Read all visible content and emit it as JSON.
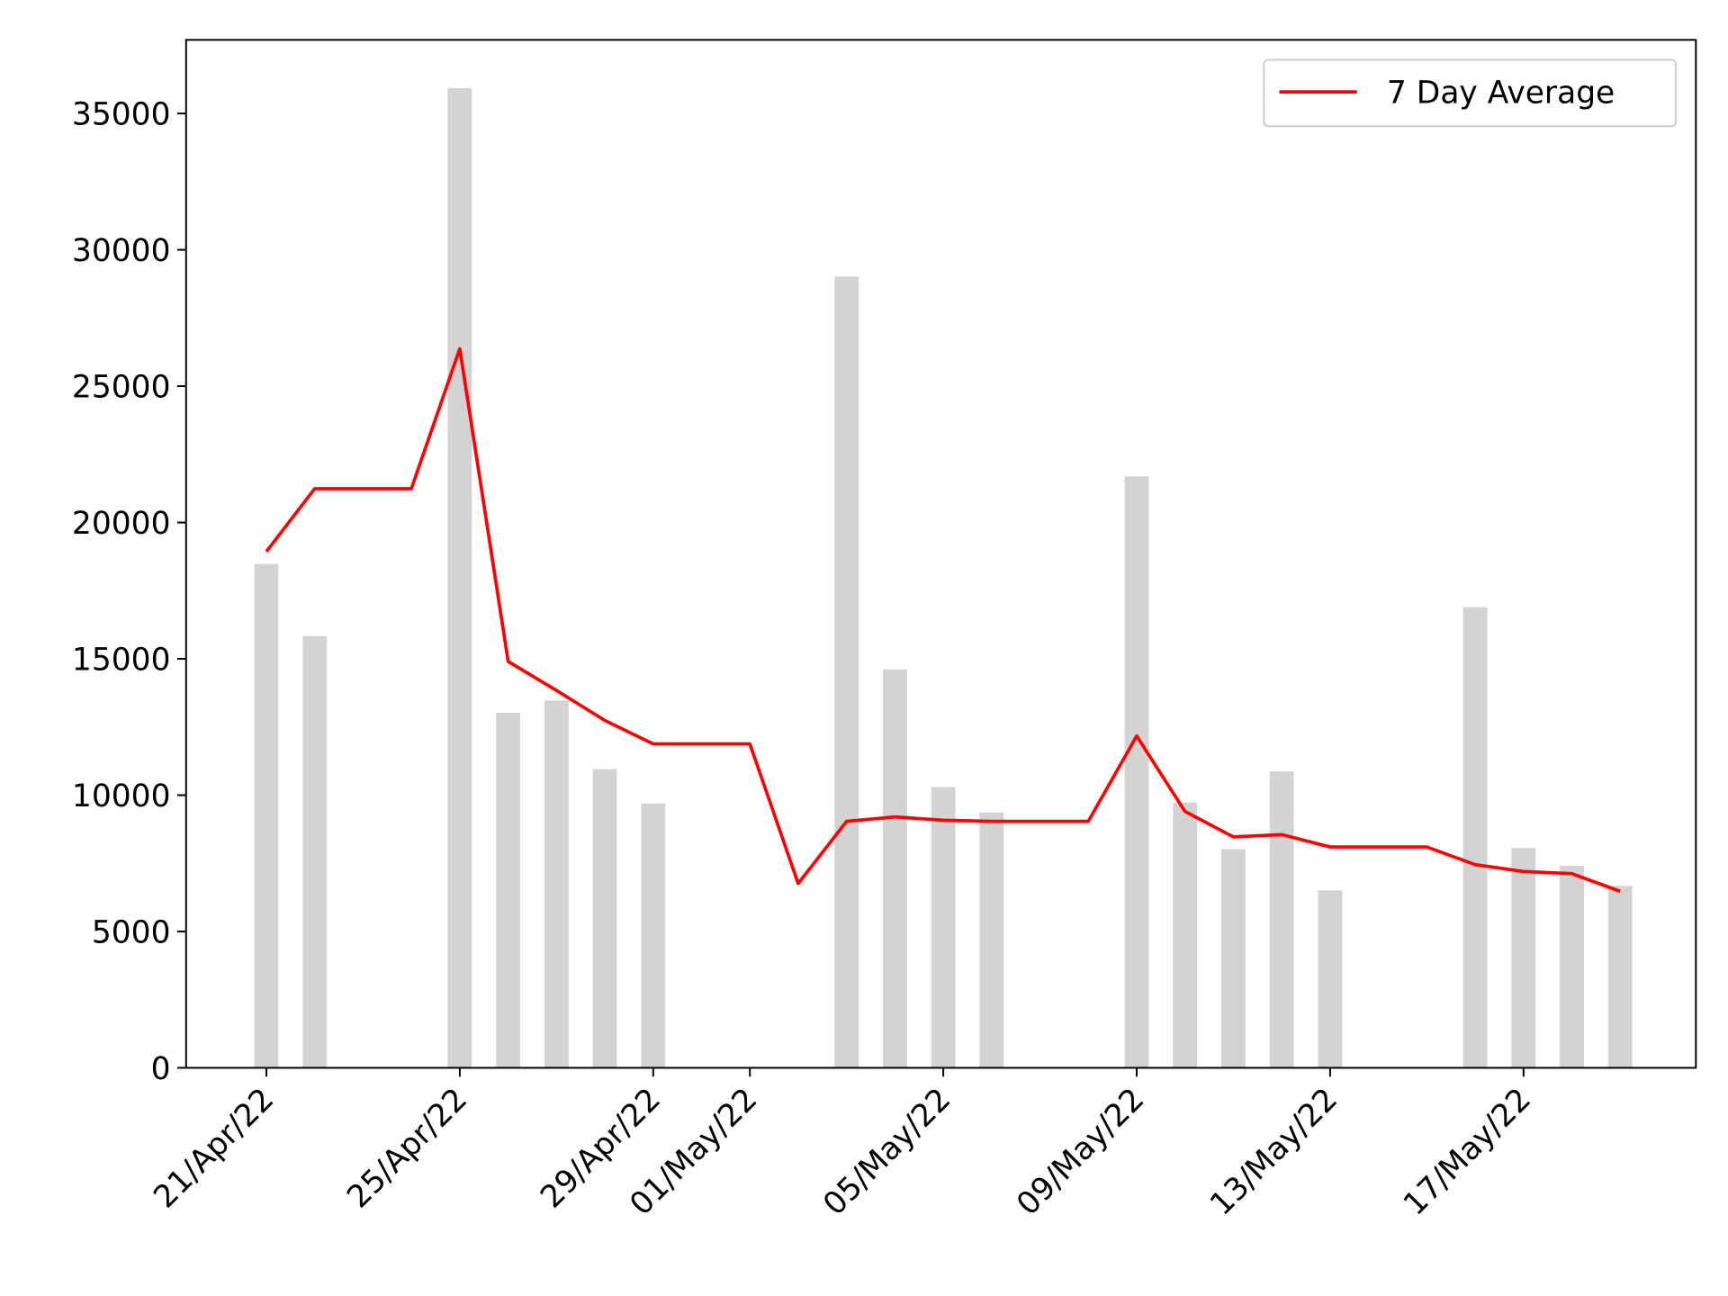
{
  "chart_data": {
    "type": "bar+line",
    "title": "",
    "xlabel": "",
    "ylabel": "",
    "ylim": [
      0,
      37700
    ],
    "yticks": [
      0,
      5000,
      10000,
      15000,
      20000,
      25000,
      30000,
      35000
    ],
    "xticks": [
      "2022-04-21",
      "2022-04-25",
      "2022-04-29",
      "2022-05-01",
      "2022-05-05",
      "2022-05-09",
      "2022-05-13",
      "2022-05-17"
    ],
    "xtick_labels": [
      "21/Apr/22",
      "25/Apr/22",
      "29/Apr/22",
      "01/May/22",
      "05/May/22",
      "09/May/22",
      "13/May/22",
      "17/May/22"
    ],
    "grid": false,
    "legend_position": "top-right",
    "bars": {
      "color": "#d3d3d3",
      "points": [
        {
          "date": "2022-04-21",
          "value": 18480
        },
        {
          "date": "2022-04-22",
          "value": 15830
        },
        {
          "date": "2022-04-25",
          "value": 35930
        },
        {
          "date": "2022-04-26",
          "value": 13020
        },
        {
          "date": "2022-04-27",
          "value": 13470
        },
        {
          "date": "2022-04-28",
          "value": 10950
        },
        {
          "date": "2022-04-29",
          "value": 9690
        },
        {
          "date": "2022-05-03",
          "value": 29020
        },
        {
          "date": "2022-05-04",
          "value": 14610
        },
        {
          "date": "2022-05-05",
          "value": 10300
        },
        {
          "date": "2022-05-06",
          "value": 9360
        },
        {
          "date": "2022-05-09",
          "value": 21690
        },
        {
          "date": "2022-05-10",
          "value": 9730
        },
        {
          "date": "2022-05-11",
          "value": 8020
        },
        {
          "date": "2022-05-12",
          "value": 10870
        },
        {
          "date": "2022-05-13",
          "value": 6510
        },
        {
          "date": "2022-05-16",
          "value": 16890
        },
        {
          "date": "2022-05-17",
          "value": 8060
        },
        {
          "date": "2022-05-18",
          "value": 7410
        },
        {
          "date": "2022-05-19",
          "value": 6670
        }
      ]
    },
    "series": [
      {
        "name": "7 Day Average",
        "color": "#ff0000",
        "points": [
          {
            "date": "2022-04-21",
            "value": 18930
          },
          {
            "date": "2022-04-22",
            "value": 21240
          },
          {
            "date": "2022-04-23",
            "value": 21240
          },
          {
            "date": "2022-04-24",
            "value": 21240
          },
          {
            "date": "2022-04-25",
            "value": 26370
          },
          {
            "date": "2022-04-26",
            "value": 14900
          },
          {
            "date": "2022-04-27",
            "value": 13840
          },
          {
            "date": "2022-04-28",
            "value": 12740
          },
          {
            "date": "2022-04-29",
            "value": 11880
          },
          {
            "date": "2022-04-30",
            "value": 11880
          },
          {
            "date": "2022-05-01",
            "value": 11880
          },
          {
            "date": "2022-05-02",
            "value": 6760
          },
          {
            "date": "2022-05-03",
            "value": 9040
          },
          {
            "date": "2022-05-04",
            "value": 9200
          },
          {
            "date": "2022-05-05",
            "value": 9080
          },
          {
            "date": "2022-05-06",
            "value": 9040
          },
          {
            "date": "2022-05-07",
            "value": 9040
          },
          {
            "date": "2022-05-08",
            "value": 9040
          },
          {
            "date": "2022-05-09",
            "value": 12170
          },
          {
            "date": "2022-05-10",
            "value": 9400
          },
          {
            "date": "2022-05-11",
            "value": 8470
          },
          {
            "date": "2022-05-12",
            "value": 8550
          },
          {
            "date": "2022-05-13",
            "value": 8100
          },
          {
            "date": "2022-05-14",
            "value": 8100
          },
          {
            "date": "2022-05-15",
            "value": 8100
          },
          {
            "date": "2022-05-16",
            "value": 7450
          },
          {
            "date": "2022-05-17",
            "value": 7200
          },
          {
            "date": "2022-05-18",
            "value": 7120
          },
          {
            "date": "2022-05-19",
            "value": 6470
          }
        ]
      }
    ]
  }
}
